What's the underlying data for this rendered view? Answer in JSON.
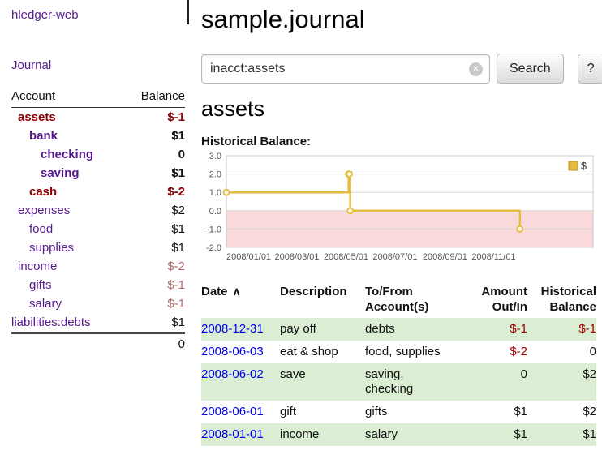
{
  "app": {
    "brand": "hledger-web",
    "nav": {
      "journal": "Journal"
    }
  },
  "sidebar": {
    "header": {
      "account": "Account",
      "balance": "Balance"
    },
    "accounts": [
      {
        "name": "assets",
        "balance": "$-1",
        "indent": 1,
        "bold": true,
        "name_negative": true,
        "balance_negative": true
      },
      {
        "name": "bank",
        "balance": "$1",
        "indent": 2,
        "bold": true,
        "name_negative": false,
        "balance_negative": false
      },
      {
        "name": "checking",
        "balance": "0",
        "indent": 3,
        "bold": true,
        "name_negative": false,
        "balance_negative": false
      },
      {
        "name": "saving",
        "balance": "$1",
        "indent": 3,
        "bold": true,
        "name_negative": false,
        "balance_negative": false
      },
      {
        "name": "cash",
        "balance": "$-2",
        "indent": 2,
        "bold": true,
        "name_negative": true,
        "balance_negative": true
      },
      {
        "name": "expenses",
        "balance": "$2",
        "indent": 1,
        "bold": false,
        "name_negative": false,
        "balance_negative": false
      },
      {
        "name": "food",
        "balance": "$1",
        "indent": 2,
        "bold": false,
        "name_negative": false,
        "balance_negative": false
      },
      {
        "name": "supplies",
        "balance": "$1",
        "indent": 2,
        "bold": false,
        "name_negative": false,
        "balance_negative": false
      },
      {
        "name": "income",
        "balance": "$-2",
        "indent": 1,
        "bold": false,
        "name_negative": false,
        "balance_negative": true
      },
      {
        "name": "gifts",
        "balance": "$-1",
        "indent": 2,
        "bold": false,
        "name_negative": false,
        "balance_negative": true
      },
      {
        "name": "salary",
        "balance": "$-1",
        "indent": 2,
        "bold": false,
        "name_negative": false,
        "balance_negative": true
      },
      {
        "name": "liabilities:debts",
        "balance": "$1",
        "indent": 0,
        "bold": false,
        "name_negative": false,
        "balance_negative": false
      }
    ],
    "total": "0"
  },
  "main": {
    "title": "sample.journal",
    "account_heading": "assets",
    "chart_label": "Historical Balance:"
  },
  "search": {
    "value": "inacct:assets",
    "clear_glyph": "✕",
    "button_label": "Search",
    "help_label": "?"
  },
  "chart_data": {
    "type": "line",
    "step": true,
    "title": "Historical Balance",
    "legend": "$",
    "legend_position": "top-right",
    "points": [
      {
        "date": "2008-01-01",
        "balance": 1
      },
      {
        "date": "2008-06-01",
        "balance": 2
      },
      {
        "date": "2008-06-02",
        "balance": 2
      },
      {
        "date": "2008-06-03",
        "balance": 0
      },
      {
        "date": "2008-12-31",
        "balance": -1
      }
    ],
    "ylim": [
      -2,
      3
    ],
    "yticks": [
      3.0,
      2.0,
      1.0,
      0.0,
      -1.0,
      -2.0
    ],
    "xlim": [
      "2008-01-01",
      "2009-04-01"
    ],
    "xticks": [
      "2008/01/01",
      "2008/03/01",
      "2008/05/01",
      "2008/07/01",
      "2008/09/01",
      "2008/11/01"
    ],
    "grid": true
  },
  "register": {
    "columns": [
      "Date",
      "Description",
      "To/From Account(s)",
      "Amount Out/In",
      "Historical Balance"
    ],
    "sort_icon": "∧",
    "rows": [
      {
        "date": "2008-12-31",
        "description": "pay off",
        "accounts": "debts",
        "amount": "$-1",
        "balance": "$-1"
      },
      {
        "date": "2008-06-03",
        "description": "eat & shop",
        "accounts": "food, supplies",
        "amount": "$-2",
        "balance": "0"
      },
      {
        "date": "2008-06-02",
        "description": "save",
        "accounts": "saving,\nchecking",
        "amount": "0",
        "balance": "$2"
      },
      {
        "date": "2008-06-01",
        "description": "gift",
        "accounts": "gifts",
        "amount": "$1",
        "balance": "$2"
      },
      {
        "date": "2008-01-01",
        "description": "income",
        "accounts": "salary",
        "amount": "$1",
        "balance": "$1"
      }
    ]
  },
  "colors": {
    "link_purple": "#551a8b",
    "link_blue": "#0000ee",
    "negative_strong": "#8b0000",
    "negative_soft": "#b36a6a",
    "table_negative": "#a40000",
    "row_stripe": "#dbeed3",
    "chart_line": "#e3bc3f",
    "chart_line_dark": "#bd9327",
    "chart_marker_fill": "#fdf6dc",
    "chart_negative_region": "#f9d9d9"
  }
}
